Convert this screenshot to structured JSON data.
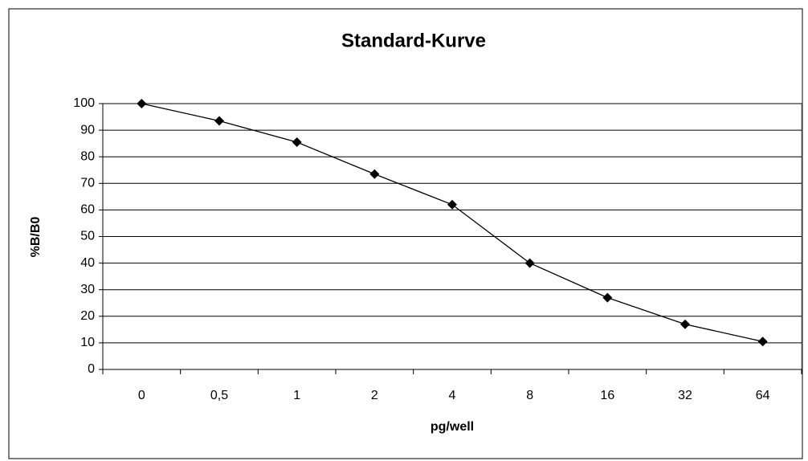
{
  "chart_data": {
    "type": "line",
    "title": "Standard-Kurve",
    "x_label": "pg/well",
    "y_label": "%B/B0",
    "categories": [
      "0",
      "0,5",
      "1",
      "2",
      "4",
      "8",
      "16",
      "32",
      "64"
    ],
    "values": [
      100,
      93.5,
      85.5,
      73.5,
      62,
      40,
      27,
      17,
      10.5
    ],
    "color": "#000000",
    "ylim": [
      0,
      100
    ],
    "yticks": [
      0,
      10,
      20,
      30,
      40,
      50,
      60,
      70,
      80,
      90,
      100
    ],
    "grid": true
  }
}
